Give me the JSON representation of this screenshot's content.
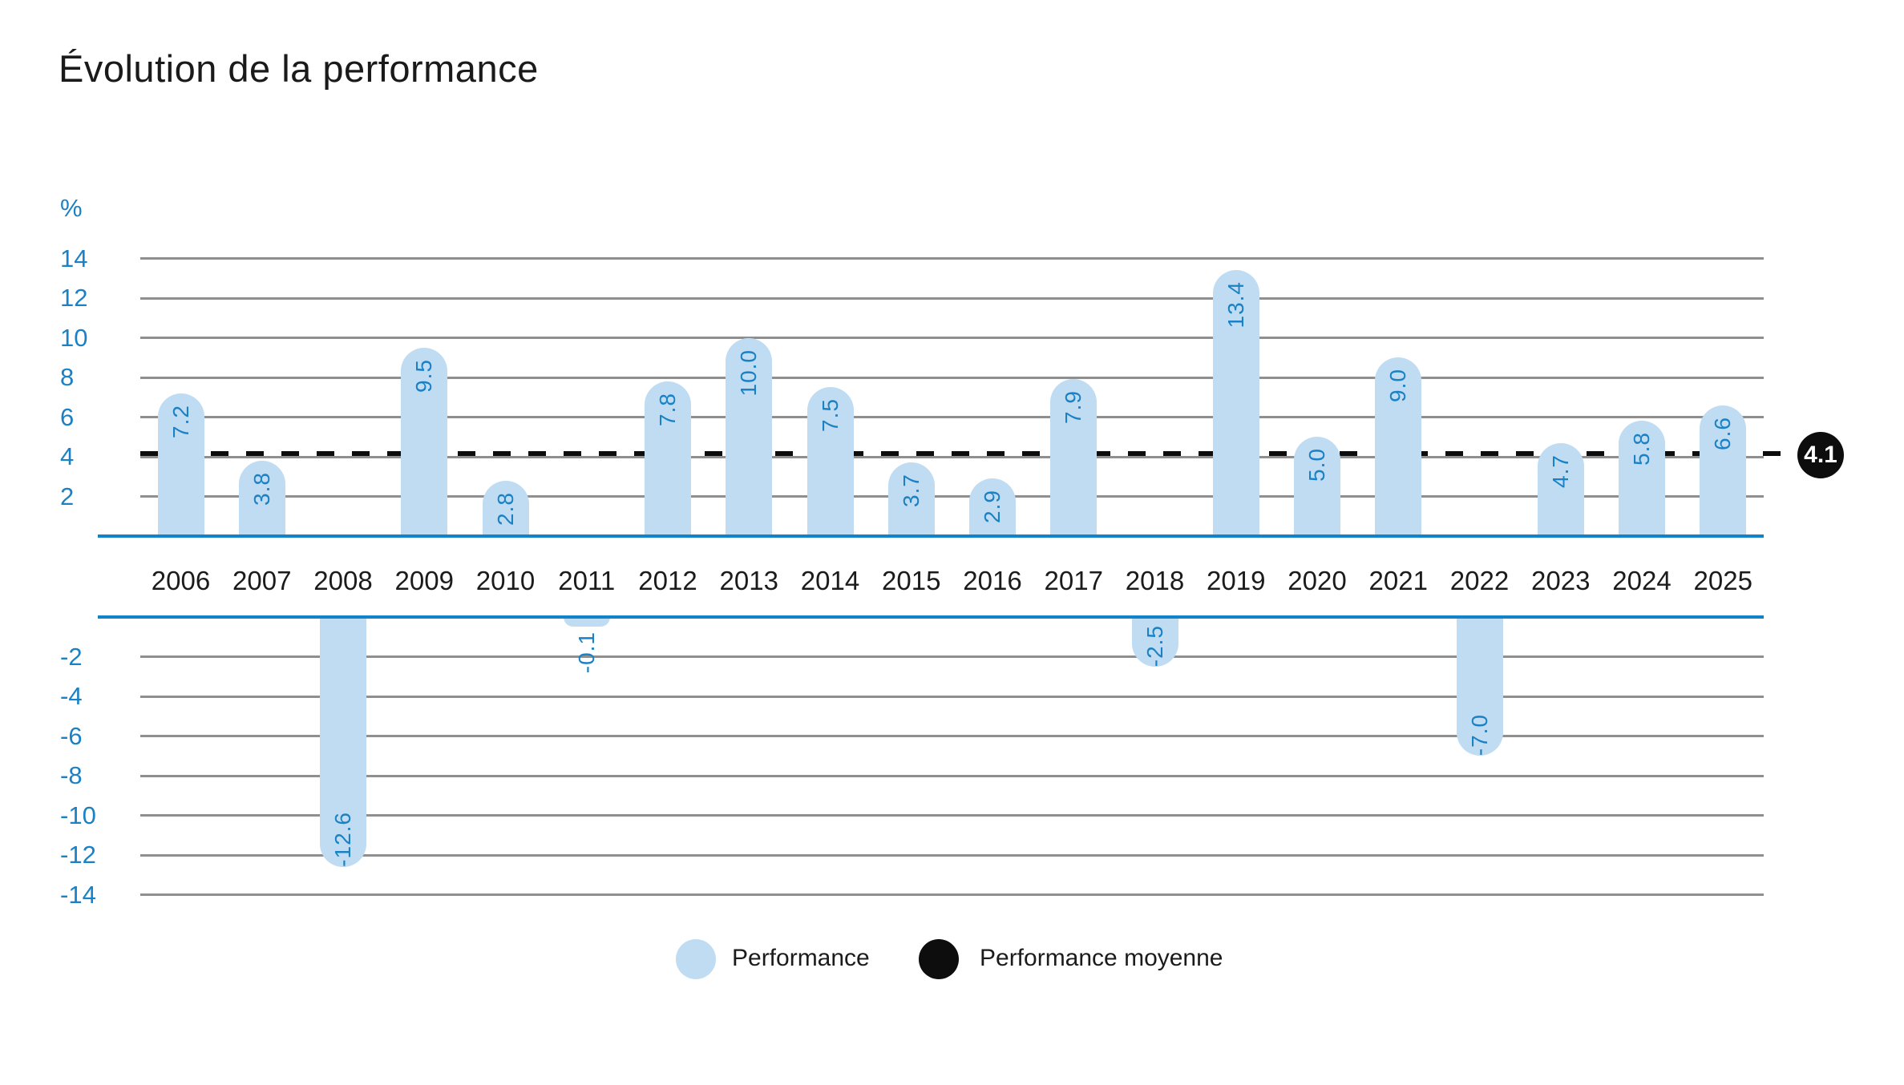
{
  "title": "Évolution de la performance",
  "chart_data": {
    "type": "bar",
    "title": "Évolution de la performance",
    "ylabel": "%",
    "categories": [
      "2006",
      "2007",
      "2008",
      "2009",
      "2010",
      "2011",
      "2012",
      "2013",
      "2014",
      "2015",
      "2016",
      "2017",
      "2018",
      "2019",
      "2020",
      "2021",
      "2022",
      "2023",
      "2024",
      "2025"
    ],
    "series": [
      {
        "name": "Performance",
        "values": [
          7.2,
          3.8,
          -12.6,
          9.5,
          2.8,
          -0.1,
          7.8,
          10.0,
          7.5,
          3.7,
          2.9,
          7.9,
          -2.5,
          13.4,
          5.0,
          9.0,
          -7.0,
          4.7,
          5.8,
          6.6
        ]
      }
    ],
    "value_labels": [
      "7.2",
      "3.8",
      "-12.6",
      "9.5",
      "2.8",
      "-0.1",
      "7.8",
      "10.0",
      "7.5",
      "3.7",
      "2.9",
      "7.9",
      "-2.5",
      "13.4",
      "5.0",
      "9.0",
      "-7.0",
      "4.7",
      "5.8",
      "6.6"
    ],
    "average_line": {
      "name": "Performance moyenne",
      "value": 4.1,
      "label": "4.1",
      "style": "dashed"
    },
    "y_ticks_positive": [
      14,
      12,
      10,
      8,
      6,
      4,
      2
    ],
    "y_ticks_negative": [
      -2,
      -4,
      -6,
      -8,
      -10,
      -12,
      -14
    ],
    "ylim": [
      -14,
      14
    ],
    "grid": true,
    "legend_position": "bottom"
  },
  "axis": {
    "unit_label": "%"
  },
  "average_badge": {
    "text": "4.1"
  },
  "legend": {
    "items": [
      {
        "label": "Performance",
        "swatch": "bar-color-dot"
      },
      {
        "label": "Performance moyenne",
        "swatch": "average-color-dot"
      }
    ]
  },
  "colors": {
    "bar_fill": "#BFDCF2",
    "value_label": "#1A81C5",
    "axis_text": "#1A81C5",
    "axis_line": "#1283C9",
    "gridline": "#8F8F8F",
    "dashed_line": "#0D0D0D",
    "badge_bg": "#0D0D0D",
    "badge_text": "#FFFFFF",
    "background": "#FFFFFF"
  }
}
